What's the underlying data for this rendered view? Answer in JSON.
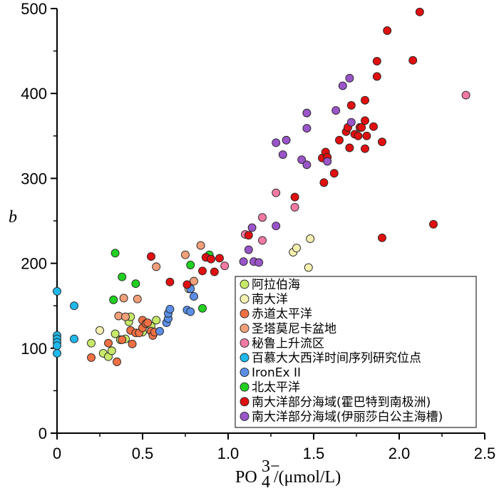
{
  "chart_data": {
    "type": "scatter",
    "xlabel_main": "PO",
    "xlabel_sub": "4",
    "xlabel_sup": "3−",
    "xlabel_unit": "/(μmol/L)",
    "ylabel": "b",
    "xlim": [
      0,
      2.5
    ],
    "ylim": [
      0,
      500
    ],
    "xticks": [
      0,
      0.5,
      1.0,
      1.5,
      2.0,
      2.5
    ],
    "xtick_labels": [
      "0",
      "0.5",
      "1.0",
      "1.5",
      "2.0",
      "2.5"
    ],
    "yticks": [
      0,
      100,
      200,
      300,
      400,
      500
    ],
    "ytick_labels": [
      "0",
      "100",
      "200",
      "300",
      "400",
      "500"
    ],
    "grid": false,
    "legend_position": "bottom-right",
    "series": [
      {
        "name": "阿拉伯海",
        "color": "#c8e86a",
        "points": [
          [
            0.2,
            106
          ],
          [
            0.27,
            94
          ],
          [
            0.3,
            90
          ],
          [
            0.32,
            97
          ],
          [
            0.34,
            117
          ],
          [
            0.37,
            110
          ],
          [
            0.4,
            111
          ],
          [
            0.42,
            131
          ],
          [
            0.43,
            137
          ],
          [
            0.5,
            119
          ],
          [
            0.55,
            126
          ],
          [
            0.58,
            133
          ]
        ]
      },
      {
        "name": "南大洋",
        "color": "#f4f0b0",
        "points": [
          [
            0.25,
            121
          ],
          [
            0.77,
            170
          ],
          [
            1.38,
            213
          ],
          [
            1.4,
            218
          ],
          [
            1.47,
            195
          ],
          [
            1.48,
            229
          ]
        ]
      },
      {
        "name": "赤道太平洋",
        "color": "#ee7044",
        "points": [
          [
            0.2,
            89
          ],
          [
            0.3,
            106
          ],
          [
            0.35,
            84
          ],
          [
            0.38,
            110
          ],
          [
            0.43,
            121
          ],
          [
            0.44,
            105
          ],
          [
            0.46,
            118
          ],
          [
            0.48,
            118
          ],
          [
            0.5,
            124
          ],
          [
            0.5,
            133
          ],
          [
            0.52,
            129
          ],
          [
            0.53,
            130
          ],
          [
            0.55,
            120
          ],
          [
            0.56,
            115
          ],
          [
            0.57,
            119
          ]
        ]
      },
      {
        "name": "圣塔莫尼卡盆地",
        "color": "#f2a07a",
        "points": [
          [
            0.36,
            138
          ],
          [
            0.39,
            159
          ],
          [
            0.4,
            137
          ],
          [
            0.47,
            158
          ],
          [
            0.58,
            196
          ],
          [
            0.75,
            210
          ],
          [
            0.8,
            179
          ],
          [
            0.84,
            221
          ]
        ]
      },
      {
        "name": "秘鲁上升流区",
        "color": "#f07aa2",
        "points": [
          [
            0.98,
            197
          ],
          [
            1.1,
            234
          ],
          [
            1.2,
            227
          ],
          [
            1.2,
            254
          ],
          [
            1.28,
            283
          ],
          [
            1.39,
            266
          ],
          [
            2.39,
            398
          ]
        ]
      },
      {
        "name": "百慕大大西洋时间序列研究位点",
        "color": "#1fb8ea",
        "points": [
          [
            0,
            167
          ],
          [
            0,
            115
          ],
          [
            0,
            111
          ],
          [
            0,
            107
          ],
          [
            0,
            103
          ],
          [
            0,
            94
          ],
          [
            0.1,
            111
          ],
          [
            0.1,
            150
          ]
        ]
      },
      {
        "name": "IronEx II",
        "color": "#5b8fe6",
        "points": [
          [
            0.6,
            120
          ],
          [
            0.64,
            130
          ],
          [
            0.65,
            135
          ],
          [
            0.65,
            141
          ],
          [
            0.66,
            146
          ],
          [
            0.76,
            145
          ],
          [
            0.78,
            143
          ],
          [
            0.78,
            170
          ],
          [
            0.8,
            161
          ]
        ]
      },
      {
        "name": "北太平洋",
        "color": "#22d022",
        "points": [
          [
            0.33,
            157
          ],
          [
            0.34,
            212
          ],
          [
            0.38,
            184
          ],
          [
            0.46,
            176
          ],
          [
            0.78,
            198
          ],
          [
            0.85,
            147
          ],
          [
            0.89,
            210
          ]
        ]
      },
      {
        "name": "南大洋部分海域(霍巴特到南极洲)",
        "color": "#e01010",
        "points": [
          [
            0.55,
            208
          ],
          [
            0.66,
            178
          ],
          [
            0.76,
            175
          ],
          [
            0.85,
            191
          ],
          [
            0.87,
            207
          ],
          [
            0.9,
            205
          ],
          [
            0.92,
            190
          ],
          [
            0.95,
            206
          ],
          [
            1.12,
            233
          ],
          [
            1.39,
            278
          ],
          [
            1.55,
            324
          ],
          [
            1.56,
            295
          ],
          [
            1.57,
            331
          ],
          [
            1.58,
            325
          ],
          [
            1.62,
            306
          ],
          [
            1.65,
            345
          ],
          [
            1.69,
            355
          ],
          [
            1.7,
            360
          ],
          [
            1.71,
            336
          ],
          [
            1.72,
            386
          ],
          [
            1.74,
            352
          ],
          [
            1.76,
            350
          ],
          [
            1.77,
            360
          ],
          [
            1.78,
            360
          ],
          [
            1.8,
            335
          ],
          [
            1.8,
            392
          ],
          [
            1.8,
            368
          ],
          [
            1.81,
            350
          ],
          [
            1.85,
            361
          ],
          [
            1.87,
            420
          ],
          [
            1.87,
            438
          ],
          [
            1.9,
            230
          ],
          [
            1.9,
            343
          ],
          [
            1.93,
            474
          ],
          [
            2.08,
            439
          ],
          [
            2.12,
            496
          ],
          [
            2.2,
            246
          ]
        ]
      },
      {
        "name": "南大洋部分海域(伊丽莎白公主海槽)",
        "color": "#9a55c8",
        "points": [
          [
            1.09,
            202
          ],
          [
            1.12,
            216
          ],
          [
            1.14,
            242
          ],
          [
            1.15,
            202
          ],
          [
            1.18,
            201
          ],
          [
            1.28,
            342
          ],
          [
            1.28,
            244
          ],
          [
            1.32,
            328
          ],
          [
            1.34,
            345
          ],
          [
            1.43,
            322
          ],
          [
            1.46,
            377
          ],
          [
            1.46,
            359
          ],
          [
            1.46,
            316
          ],
          [
            1.58,
            320
          ],
          [
            1.63,
            380
          ],
          [
            1.67,
            409
          ],
          [
            1.71,
            418
          ],
          [
            1.72,
            366
          ]
        ]
      }
    ]
  }
}
